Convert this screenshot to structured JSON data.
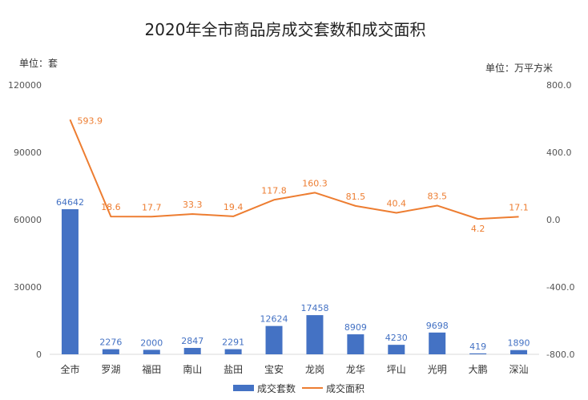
{
  "colors": {
    "bar": "#4472C4",
    "line": "#ED7D31",
    "axis": "#d9d9d9"
  },
  "chart_data": {
    "type": "bar",
    "title": "2020年全市商品房成交套数和成交面积",
    "left_unit": "单位：套",
    "right_unit": "单位：万平方米",
    "categories": [
      "全市",
      "罗湖",
      "福田",
      "南山",
      "盐田",
      "宝安",
      "龙岗",
      "龙华",
      "坪山",
      "光明",
      "大鹏",
      "深汕"
    ],
    "y_left": {
      "lim": [
        0,
        120000
      ],
      "ticks": [
        "0",
        "30000",
        "60000",
        "90000",
        "120000"
      ]
    },
    "y_right": {
      "lim": [
        -800,
        800
      ],
      "ticks": [
        "-800.0",
        "-400.0",
        "0.0",
        "400.0",
        "800.0"
      ]
    },
    "grid": false,
    "legend_position": "bottom",
    "series": [
      {
        "name": "成交套数",
        "type": "bar",
        "axis": "left",
        "values": [
          64642,
          2276,
          2000,
          2847,
          2291,
          12624,
          17458,
          8909,
          4230,
          9698,
          419,
          1890
        ],
        "labels": [
          "64642",
          "2276",
          "2000",
          "2847",
          "2291",
          "12624",
          "17458",
          "8909",
          "4230",
          "9698",
          "419",
          "1890"
        ]
      },
      {
        "name": "成交面积",
        "type": "line",
        "axis": "right",
        "values": [
          593.9,
          18.6,
          17.7,
          33.3,
          19.4,
          117.8,
          160.3,
          81.5,
          40.4,
          83.5,
          4.2,
          17.1
        ],
        "labels": [
          "593.9",
          "18.6",
          "17.7",
          "33.3",
          "19.4",
          "117.8",
          "160.3",
          "81.5",
          "40.4",
          "83.5",
          "4.2",
          "17.1"
        ]
      }
    ]
  }
}
